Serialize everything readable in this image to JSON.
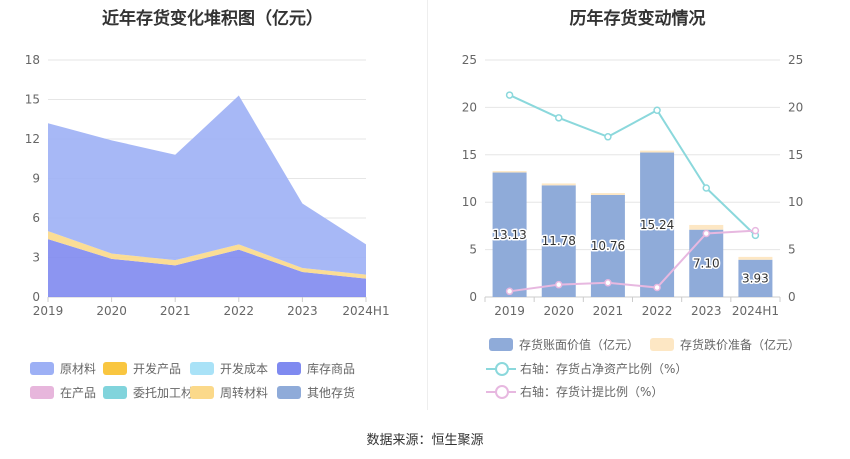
{
  "left_title": "近年存货变化堆积图（亿元）",
  "right_title": "历年存货变动情况",
  "source": "数据来源：恒生聚源",
  "colors": {
    "原材料": "#9db0f5",
    "开发产品": "#f9c640",
    "开发成本": "#a9e2f7",
    "库存商品": "#7f8af0",
    "在产品": "#e7b6dc",
    "委托加工材料": "#81d4dc",
    "周转材料": "#fbd98a",
    "其他存货": "#8fabd9",
    "bar_main": "#8fabd9",
    "bar_reserve": "#fde7c4",
    "line_ratio": "#8bd8dc",
    "line_provision": "#e7b8e0"
  },
  "left_legend": [
    "原材料",
    "开发产品",
    "开发成本",
    "库存商品",
    "在产品",
    "委托加工材料",
    "周转材料",
    "其他存货"
  ],
  "right_legend": {
    "bar_main": "存货账面价值（亿元）",
    "bar_reserve": "存货跌价准备（亿元）",
    "line_ratio": "右轴：存货占净资产比例（%）",
    "line_provision": "右轴：存货计提比例（%）"
  },
  "chart_data": [
    {
      "type": "area",
      "stacked": true,
      "title": "近年存货变化堆积图（亿元）",
      "categories": [
        "2019",
        "2020",
        "2021",
        "2022",
        "2023",
        "2024H1"
      ],
      "ylim": [
        0,
        18
      ],
      "yticks": [
        0,
        3,
        6,
        9,
        12,
        15,
        18
      ],
      "grid": true,
      "legend_position": "bottom",
      "series": [
        {
          "name": "库存商品",
          "values": [
            4.4,
            2.9,
            2.4,
            3.6,
            1.9,
            1.4
          ]
        },
        {
          "name": "周转材料",
          "values": [
            0.6,
            0.4,
            0.4,
            0.4,
            0.3,
            0.3
          ]
        },
        {
          "name": "原材料",
          "values": [
            8.2,
            8.6,
            8.0,
            11.3,
            4.9,
            2.3
          ]
        }
      ]
    },
    {
      "type": "bar",
      "title": "历年存货变动情况",
      "categories": [
        "2019",
        "2020",
        "2021",
        "2022",
        "2023",
        "2024H1"
      ],
      "ylim": [
        0,
        25
      ],
      "y2lim": [
        0,
        25
      ],
      "yticks": [
        0,
        5,
        10,
        15,
        20,
        25
      ],
      "grid": true,
      "legend_position": "bottom",
      "series": [
        {
          "name": "存货账面价值（亿元）",
          "type": "bar",
          "values": [
            13.13,
            11.78,
            10.76,
            15.24,
            7.1,
            3.93
          ],
          "labels": [
            "13.13",
            "11.78",
            "10.76",
            "15.24",
            "7.10",
            "3.93"
          ]
        },
        {
          "name": "存货跌价准备（亿元）",
          "type": "bar",
          "stacked": true,
          "values": [
            0.15,
            0.2,
            0.2,
            0.2,
            0.5,
            0.3
          ]
        },
        {
          "name": "右轴：存货占净资产比例（%）",
          "type": "line",
          "axis": "right",
          "values": [
            21.3,
            18.9,
            16.9,
            19.7,
            11.5,
            6.5
          ]
        },
        {
          "name": "右轴：存货计提比例（%）",
          "type": "line",
          "axis": "right",
          "values": [
            0.6,
            1.3,
            1.5,
            1.0,
            6.7,
            7.0
          ]
        }
      ]
    }
  ]
}
